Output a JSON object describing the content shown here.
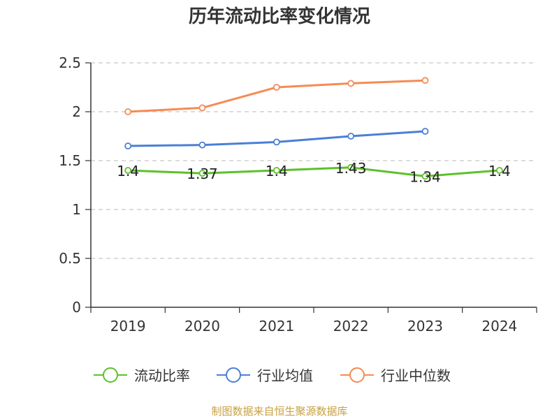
{
  "chart_data": {
    "type": "line",
    "title": "历年流动比率变化情况",
    "categories": [
      "2019",
      "2020",
      "2021",
      "2022",
      "2023",
      "2024"
    ],
    "ylim": [
      0,
      2.5
    ],
    "yticks": [
      "0",
      "0.5",
      "1",
      "1.5",
      "2",
      "2.5"
    ],
    "grid": true,
    "legend_position": "bottom",
    "series": [
      {
        "name": "流动比率",
        "color": "#5cc12a",
        "values": [
          1.4,
          1.37,
          1.4,
          1.43,
          1.34,
          1.4
        ],
        "labels": [
          "1.4",
          "1.37",
          "1.4",
          "1.43",
          "1.34",
          "1.4"
        ],
        "show_labels": true
      },
      {
        "name": "行业均值",
        "color": "#4a7fd6",
        "values": [
          1.65,
          1.66,
          1.69,
          1.75,
          1.8,
          null
        ],
        "show_labels": false
      },
      {
        "name": "行业中位数",
        "color": "#f58b54",
        "values": [
          2.0,
          2.04,
          2.25,
          2.29,
          2.32,
          null
        ],
        "show_labels": false
      }
    ],
    "source": "制图数据来自恒生聚源数据库"
  }
}
